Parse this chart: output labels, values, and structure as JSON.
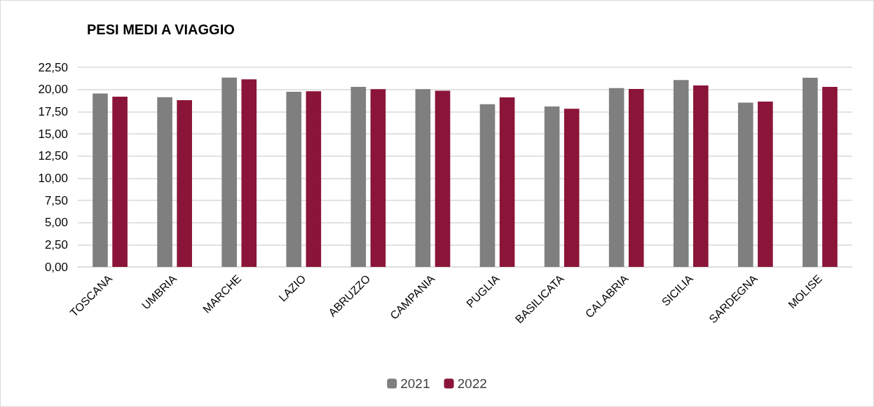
{
  "chart_data": {
    "type": "bar",
    "title": "PESI MEDI A VIAGGIO",
    "categories": [
      "TOSCANA",
      "UMBRIA",
      "MARCHE",
      "LAZIO",
      "ABRUZZO",
      "CAMPANIA",
      "PUGLIA",
      "BASILICATA",
      "CALABRIA",
      "SICILIA",
      "SARDEGNA",
      "MOLISE"
    ],
    "series": [
      {
        "name": "2021",
        "color": "#7f7f7f",
        "values": [
          19.53,
          19.13,
          21.34,
          19.74,
          20.29,
          20.03,
          18.34,
          18.08,
          20.15,
          21.05,
          18.52,
          21.31
        ]
      },
      {
        "name": "2022",
        "color": "#8b1538",
        "values": [
          19.19,
          18.78,
          21.13,
          19.8,
          20.03,
          19.85,
          19.1,
          17.82,
          20.06,
          20.44,
          18.63,
          20.29
        ]
      }
    ],
    "ylim": [
      0,
      22.5
    ],
    "yticks": [
      {
        "value": 0,
        "label": "0,00"
      },
      {
        "value": 2.5,
        "label": "2,50"
      },
      {
        "value": 5,
        "label": "5,00"
      },
      {
        "value": 7.5,
        "label": "7,50"
      },
      {
        "value": 10,
        "label": "10,00"
      },
      {
        "value": 12.5,
        "label": "12,50"
      },
      {
        "value": 15,
        "label": "15,00"
      },
      {
        "value": 17.5,
        "label": "17,50"
      },
      {
        "value": 20,
        "label": "20,00"
      },
      {
        "value": 22.5,
        "label": "22,50"
      }
    ],
    "grid": "y",
    "legend": "bottom"
  }
}
